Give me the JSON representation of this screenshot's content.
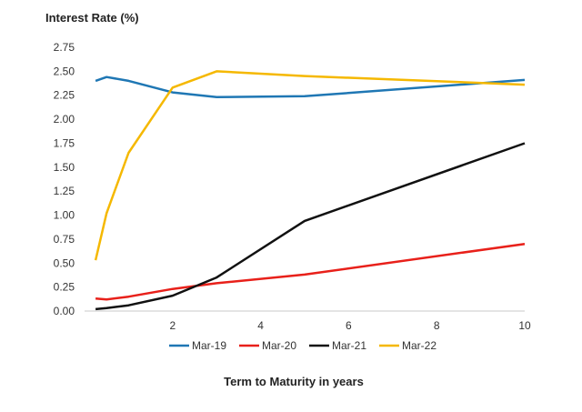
{
  "chart_data": {
    "type": "line",
    "ylabel": "Interest Rate (%)",
    "xlabel": "Term to Maturity in years",
    "xlim": [
      0,
      10
    ],
    "ylim": [
      0,
      2.75
    ],
    "xticks": [
      2,
      4,
      6,
      8,
      10
    ],
    "xtick_labels": [
      "2",
      "4",
      "6",
      "8",
      "10"
    ],
    "yticks": [
      0,
      0.25,
      0.5,
      0.75,
      1.0,
      1.25,
      1.5,
      1.75,
      2.0,
      2.25,
      2.5,
      2.75
    ],
    "ytick_labels": [
      "0.00",
      "0.25",
      "0.50",
      "0.75",
      "1.00",
      "1.25",
      "1.50",
      "1.75",
      "2.00",
      "2.25",
      "2.50",
      "2.75"
    ],
    "grid": false,
    "legend": "bottom",
    "series": [
      {
        "name": "Mar-19",
        "color": "#1f77b4",
        "x": [
          0.25,
          0.5,
          1,
          2,
          3,
          5,
          10
        ],
        "y": [
          2.4,
          2.44,
          2.4,
          2.28,
          2.23,
          2.24,
          2.41
        ]
      },
      {
        "name": "Mar-20",
        "color": "#e8201a",
        "x": [
          0.25,
          0.5,
          1,
          2,
          3,
          5,
          10
        ],
        "y": [
          0.13,
          0.12,
          0.15,
          0.23,
          0.29,
          0.38,
          0.7
        ]
      },
      {
        "name": "Mar-21",
        "color": "#111111",
        "x": [
          0.25,
          0.5,
          1,
          2,
          3,
          5,
          10
        ],
        "y": [
          0.02,
          0.03,
          0.06,
          0.16,
          0.35,
          0.94,
          1.75
        ]
      },
      {
        "name": "Mar-22",
        "color": "#f5b800",
        "x": [
          0.25,
          0.5,
          1,
          2,
          3,
          5,
          10
        ],
        "y": [
          0.53,
          1.02,
          1.65,
          2.33,
          2.5,
          2.45,
          2.36
        ]
      }
    ]
  }
}
